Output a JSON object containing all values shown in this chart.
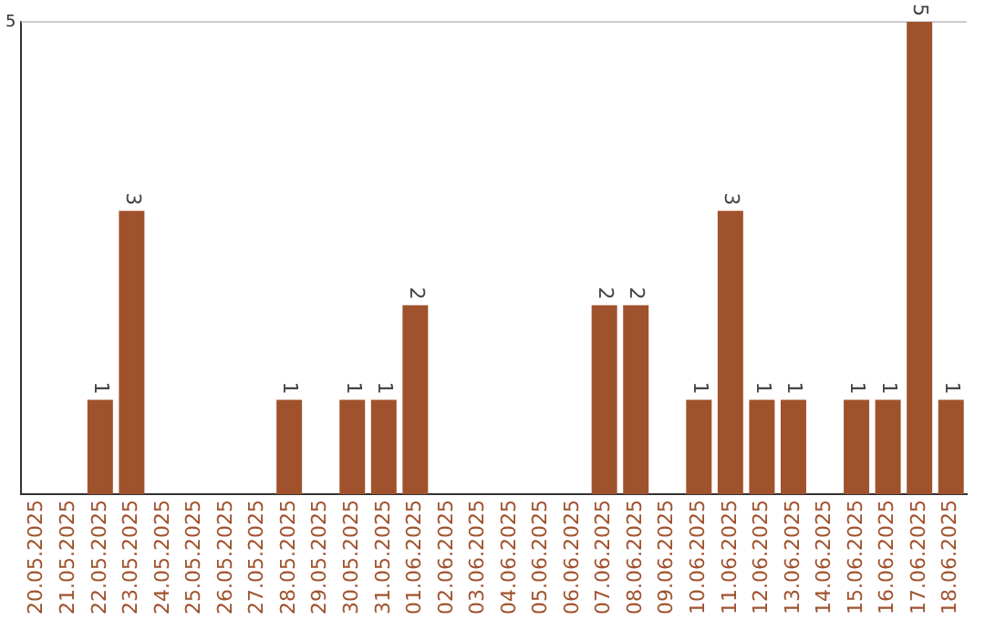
{
  "chart_data": {
    "type": "bar",
    "categories": [
      "20.05.2025",
      "21.05.2025",
      "22.05.2025",
      "23.05.2025",
      "24.05.2025",
      "25.05.2025",
      "26.05.2025",
      "27.05.2025",
      "28.05.2025",
      "29.05.2025",
      "30.05.2025",
      "31.05.2025",
      "01.06.2025",
      "02.06.2025",
      "03.06.2025",
      "04.06.2025",
      "05.06.2025",
      "06.06.2025",
      "07.06.2025",
      "08.06.2025",
      "09.06.2025",
      "10.06.2025",
      "11.06.2025",
      "12.06.2025",
      "13.06.2025",
      "14.06.2025",
      "15.06.2025",
      "16.06.2025",
      "17.06.2025",
      "18.06.2025"
    ],
    "values": [
      0,
      0,
      1,
      3,
      0,
      0,
      0,
      0,
      1,
      0,
      1,
      1,
      2,
      0,
      0,
      0,
      0,
      0,
      2,
      2,
      0,
      1,
      3,
      1,
      1,
      0,
      1,
      1,
      5,
      1
    ],
    "value_labels": [
      null,
      null,
      "1",
      "3",
      null,
      null,
      null,
      null,
      "1",
      null,
      "1",
      "1",
      "2",
      null,
      null,
      null,
      null,
      null,
      "2",
      "2",
      null,
      "1",
      "3",
      "1",
      "1",
      null,
      "1",
      "1",
      "5",
      "1"
    ],
    "color": "#a0522d",
    "ylim": [
      0,
      5
    ],
    "yticks": [
      5
    ],
    "ref_lines": [
      {
        "axis": "y",
        "value": 5,
        "color": "#cccccc"
      }
    ],
    "legend": false
  }
}
